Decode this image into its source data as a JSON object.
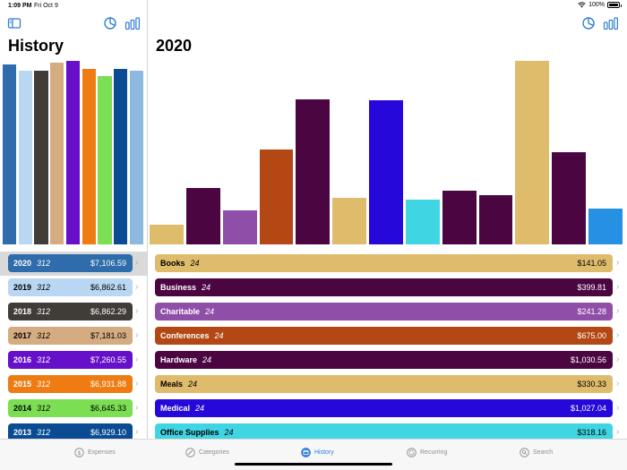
{
  "status": {
    "time": "1:09 PM",
    "date": "Fri Oct 9",
    "battery": "100%"
  },
  "sidebar": {
    "title": "History",
    "bar_values": [
      7106.59,
      6862.61,
      6862.29,
      7181.03,
      7260.55,
      6931.88,
      6645.33,
      6929.1,
      6862.61
    ],
    "bar_colors": [
      "#2f6cab",
      "#b9d6f2",
      "#403c38",
      "#d5ab81",
      "#6610c9",
      "#ee7c12",
      "#7bde53",
      "#0a4b93",
      "#8db9e0"
    ],
    "years": [
      {
        "year": "2020",
        "count": "312",
        "amount": "$7,106.59",
        "color": "#2f6cab",
        "text": "dark"
      },
      {
        "year": "2019",
        "count": "312",
        "amount": "$6,862.61",
        "color": "#b9d6f2",
        "text": "light"
      },
      {
        "year": "2018",
        "count": "312",
        "amount": "$6,862.29",
        "color": "#403c38",
        "text": "dark"
      },
      {
        "year": "2017",
        "count": "312",
        "amount": "$7,181.03",
        "color": "#d5ab81",
        "text": "light"
      },
      {
        "year": "2016",
        "count": "312",
        "amount": "$7,260.55",
        "color": "#6610c9",
        "text": "dark"
      },
      {
        "year": "2015",
        "count": "312",
        "amount": "$6,931.88",
        "color": "#ee7c12",
        "text": "dark"
      },
      {
        "year": "2014",
        "count": "312",
        "amount": "$6,645.33",
        "color": "#7bde53",
        "text": "light"
      },
      {
        "year": "2013",
        "count": "312",
        "amount": "$6,929.10",
        "color": "#0a4b93",
        "text": "dark"
      }
    ]
  },
  "main": {
    "title": "2020",
    "bar_values": [
      141.05,
      399.81,
      241.28,
      675.0,
      1030.56,
      330.33,
      1027.04,
      318.16,
      380.0,
      350.0,
      1307.0,
      658.0,
      257.0
    ],
    "bar_colors": [
      "#dfbb6c",
      "#4b0642",
      "#8f4ea8",
      "#b34814",
      "#4b0642",
      "#dfbb6c",
      "#2609da",
      "#40d5e3",
      "#4b0642",
      "#4b0642",
      "#dfbb6c",
      "#4b0642",
      "#2690e3"
    ],
    "categories": [
      {
        "name": "Books",
        "count": "24",
        "amount": "$141.05",
        "color": "#dfbb6c",
        "text": "light"
      },
      {
        "name": "Business",
        "count": "24",
        "amount": "$399.81",
        "color": "#4b0642",
        "text": "dark"
      },
      {
        "name": "Charitable",
        "count": "24",
        "amount": "$241.28",
        "color": "#8f4ea8",
        "text": "dark"
      },
      {
        "name": "Conferences",
        "count": "24",
        "amount": "$675.00",
        "color": "#b34814",
        "text": "dark"
      },
      {
        "name": "Hardware",
        "count": "24",
        "amount": "$1,030.56",
        "color": "#4b0642",
        "text": "dark"
      },
      {
        "name": "Meals",
        "count": "24",
        "amount": "$330.33",
        "color": "#dfbb6c",
        "text": "light"
      },
      {
        "name": "Medical",
        "count": "24",
        "amount": "$1,027.04",
        "color": "#2609da",
        "text": "dark"
      },
      {
        "name": "Office Supplies",
        "count": "24",
        "amount": "$318.16",
        "color": "#40d5e3",
        "text": "light"
      }
    ]
  },
  "tabs": [
    {
      "label": "Expenses",
      "icon": "dollar-circle-icon"
    },
    {
      "label": "Categories",
      "icon": "tag-circle-icon"
    },
    {
      "label": "History",
      "icon": "calendar-circle-icon"
    },
    {
      "label": "Recurring",
      "icon": "repeat-circle-icon"
    },
    {
      "label": "Search",
      "icon": "search-circle-icon"
    }
  ],
  "accent": "#2f7dd6"
}
